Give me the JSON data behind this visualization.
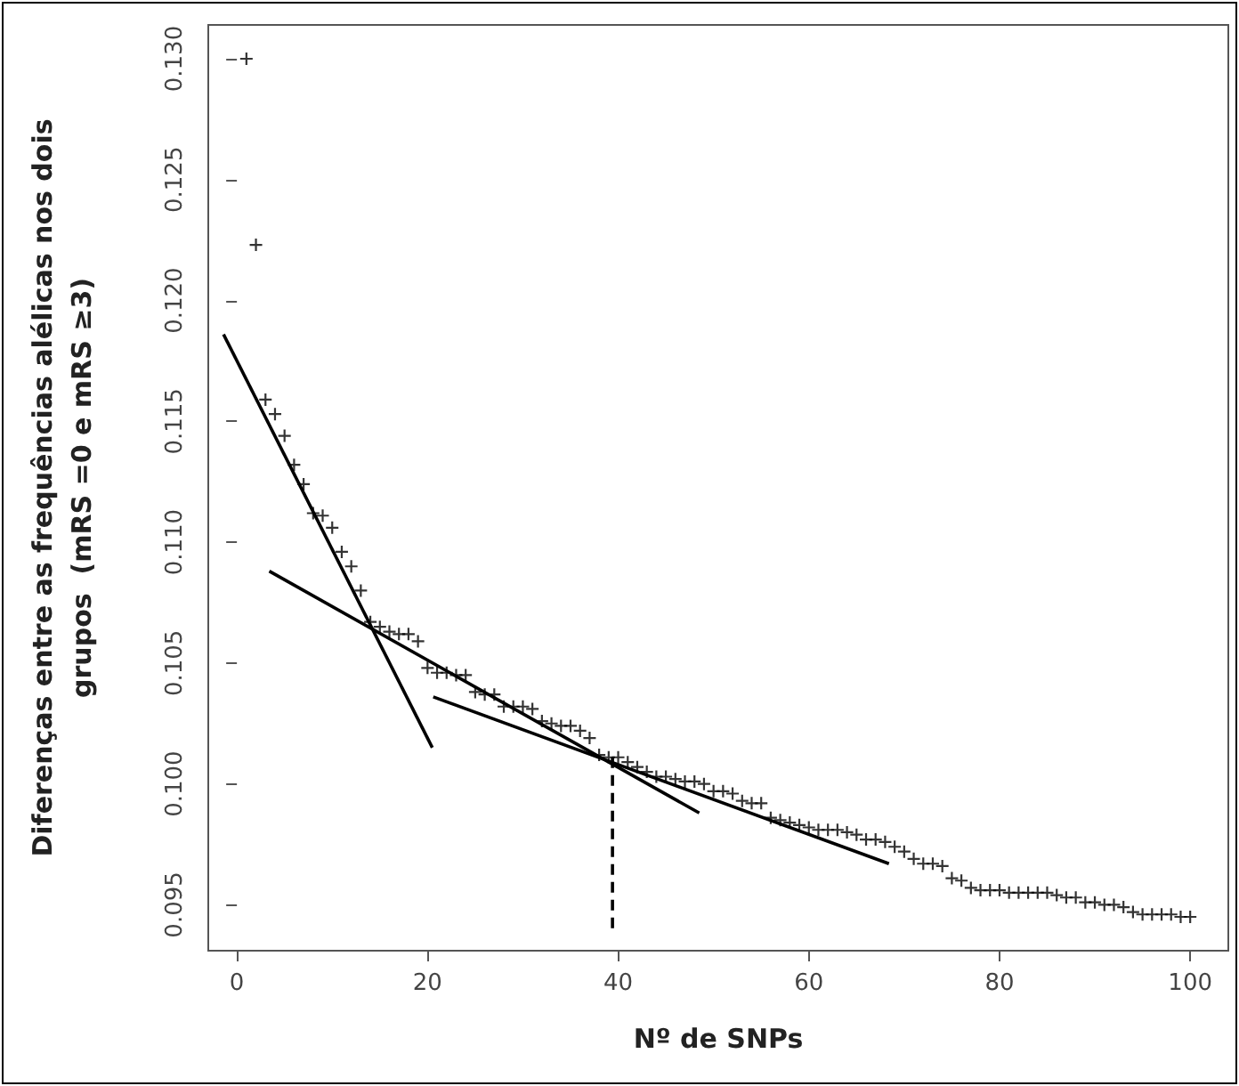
{
  "chart_data": {
    "type": "scatter",
    "xlabel": "Nº de SNPs",
    "ylabel": "Diferenças entre as frequências alélicas nos dois\ngrupos  (mRS =0 e mRS ≥3)",
    "xlim": [
      -3,
      104
    ],
    "xticks": [
      0,
      20,
      40,
      60,
      80,
      100
    ],
    "ylim": [
      0.0931,
      0.1314
    ],
    "yticks": [
      0.095,
      {
        "value": 0.1,
        "label": "0.100"
      },
      0.105,
      {
        "value": 0.11,
        "label": "0.110"
      },
      0.115,
      {
        "value": 0.12,
        "label": "0.120"
      },
      0.125,
      {
        "value": 0.13,
        "label": "0.130"
      }
    ],
    "grid": false,
    "series": [
      {
        "color": "#000000",
        "marker": "cross",
        "x": [
          1,
          2,
          3,
          4,
          5,
          6,
          7,
          8,
          9,
          10,
          11,
          12,
          13,
          14,
          15,
          16,
          17,
          18,
          19,
          20,
          21,
          22,
          23,
          24,
          25,
          26,
          27,
          28,
          29,
          30,
          31,
          32,
          33,
          34,
          35,
          36,
          37,
          38,
          39,
          40,
          41,
          42,
          43,
          44,
          45,
          46,
          47,
          48,
          49,
          50,
          51,
          52,
          53,
          54,
          55,
          56,
          57,
          58,
          59,
          60,
          61,
          62,
          63,
          64,
          65,
          66,
          67,
          68,
          69,
          70,
          71,
          72,
          73,
          74,
          75,
          76,
          77,
          78,
          79,
          80,
          81,
          82,
          83,
          84,
          85,
          86,
          87,
          88,
          89,
          90,
          91,
          92,
          93,
          94,
          95,
          96,
          97,
          98,
          99,
          100
        ],
        "values": [
          0.13,
          0.1223,
          0.1159,
          0.1153,
          0.1144,
          0.1132,
          0.1124,
          0.1112,
          0.1111,
          0.1106,
          0.1096,
          0.109,
          0.108,
          0.1067,
          0.1065,
          0.1063,
          0.1062,
          0.1062,
          0.1059,
          0.1048,
          0.1046,
          0.1046,
          0.1045,
          0.1045,
          0.1038,
          0.1037,
          0.1037,
          0.1032,
          0.1032,
          0.1032,
          0.1031,
          0.1026,
          0.1025,
          0.1024,
          0.1024,
          0.1022,
          0.1019,
          0.1012,
          0.1011,
          0.1011,
          0.1009,
          0.1007,
          0.1005,
          0.1003,
          0.1003,
          0.1002,
          0.1001,
          0.1001,
          0.1,
          0.0997,
          0.0997,
          0.0996,
          0.0993,
          0.0992,
          0.0992,
          0.0986,
          0.0985,
          0.0984,
          0.0983,
          0.0982,
          0.0981,
          0.0981,
          0.0981,
          0.098,
          0.0979,
          0.0977,
          0.0977,
          0.0976,
          0.0974,
          0.0972,
          0.0969,
          0.0967,
          0.0967,
          0.0966,
          0.0961,
          0.096,
          0.0957,
          0.0956,
          0.0956,
          0.0956,
          0.0955,
          0.0955,
          0.0955,
          0.0955,
          0.0955,
          0.0954,
          0.0953,
          0.0953,
          0.0951,
          0.0951,
          0.095,
          0.095,
          0.0949,
          0.0947,
          0.0946,
          0.0946,
          0.0946,
          0.0946,
          0.0945,
          0.0945
        ]
      },
      {
        "type": "line",
        "color": "#000000",
        "marker": "none",
        "line_style": "solid",
        "x": [
          -1.4,
          20.5
        ],
        "values": [
          0.1186,
          0.1015
        ]
      },
      {
        "type": "line",
        "color": "#000000",
        "marker": "none",
        "line_style": "solid",
        "x": [
          3.4,
          48.5
        ],
        "values": [
          0.1088,
          0.0988
        ]
      },
      {
        "type": "line",
        "color": "#000000",
        "marker": "none",
        "line_style": "solid",
        "x": [
          20.6,
          68.4
        ],
        "values": [
          0.1036,
          0.0967
        ]
      },
      {
        "type": "line",
        "color": "#000000",
        "marker": "none",
        "line_style": "dashed",
        "x": [
          39.4,
          39.4
        ],
        "values": [
          0.1011,
          0.0938
        ]
      }
    ]
  }
}
